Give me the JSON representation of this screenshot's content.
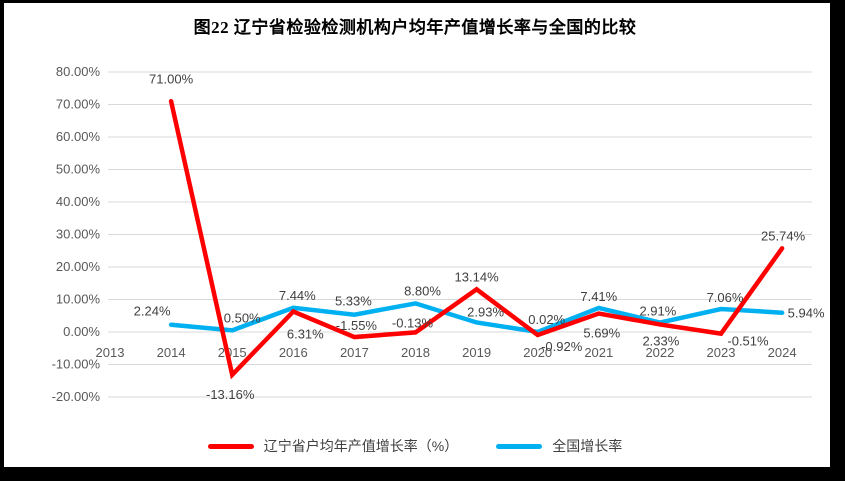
{
  "title": "图22  辽宁省检验检测机构户均年产值增长率与全国的比较",
  "colors": {
    "liaoning_line": "#FF0000",
    "national_line": "#00B0F0",
    "gridline": "#D9D9D9",
    "axis_text": "#595959",
    "data_label_text": "#404040",
    "frame": "#000000",
    "background": "#FFFFFF"
  },
  "chart_data": {
    "type": "line",
    "title": "图22  辽宁省检验检测机构户均年产值增长率与全国的比较",
    "categories": [
      "2013",
      "2014",
      "2015",
      "2016",
      "2017",
      "2018",
      "2019",
      "2020",
      "2021",
      "2022",
      "2023",
      "2024"
    ],
    "series": [
      {
        "name": "辽宁省户均年产值增长率（%）",
        "color": "#FF0000",
        "values": [
          null,
          71.0,
          -13.16,
          6.31,
          -1.55,
          -0.13,
          13.14,
          -0.92,
          5.69,
          2.33,
          -0.51,
          25.74
        ],
        "labels": [
          null,
          "71.00%",
          "-13.16%",
          "6.31%",
          "-1.55%",
          "-0.13%",
          "13.14%",
          "-0.92%",
          "5.69%",
          "2.33%",
          "-0.51%",
          "25.74%"
        ],
        "label_offsets": [
          null,
          [
            0,
            -18
          ],
          [
            -2,
            24
          ],
          [
            12,
            27
          ],
          [
            2,
            -7
          ],
          [
            -3,
            -5
          ],
          [
            0,
            -8
          ],
          [
            24,
            16
          ],
          [
            3,
            24
          ],
          [
            1,
            21
          ],
          [
            27,
            12
          ],
          [
            1,
            -8
          ]
        ]
      },
      {
        "name": "全国增长率",
        "color": "#00B0F0",
        "values": [
          null,
          2.24,
          0.5,
          7.44,
          5.33,
          8.8,
          2.93,
          0.02,
          7.41,
          2.91,
          7.06,
          5.94
        ],
        "labels": [
          null,
          "2.24%",
          "0.50%",
          "7.44%",
          "5.33%",
          "8.80%",
          "2.93%",
          "0.02%",
          "7.41%",
          "2.91%",
          "7.06%",
          "5.94%"
        ],
        "label_offsets": [
          null,
          [
            -19,
            -9
          ],
          [
            10,
            -8
          ],
          [
            4,
            -8
          ],
          [
            -1,
            -9
          ],
          [
            7,
            -8
          ],
          [
            9,
            -6
          ],
          [
            9,
            -8
          ],
          [
            0,
            -7
          ],
          [
            -2,
            -7
          ],
          [
            4,
            -7
          ],
          [
            24,
            5
          ]
        ]
      }
    ],
    "ylim": [
      -20,
      80
    ],
    "ytick_step": 10,
    "ytick_labels": [
      "80.00%",
      "70.00%",
      "60.00%",
      "50.00%",
      "40.00%",
      "30.00%",
      "20.00%",
      "10.00%",
      "0.00%",
      "-10.00%",
      "-20.00%"
    ],
    "grid": true,
    "legend_position": "bottom"
  }
}
